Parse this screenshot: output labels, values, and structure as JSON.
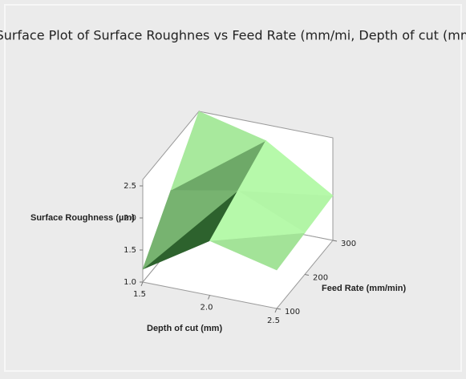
{
  "chart_data": {
    "type": "surface",
    "title": "Surface Plot of Surface Roughnes vs Feed Rate (mm/mi, Depth of cut (mm",
    "xlabel": "Depth of cut (mm)",
    "ylabel": "Feed Rate (mm/min)",
    "zlabel": "Surface Roughness (µm)",
    "x": [
      1.5,
      2.0,
      2.5
    ],
    "y": [
      100,
      200,
      300
    ],
    "z": [
      [
        1.2,
        1.85,
        1.6
      ],
      [
        1.9,
        2.1,
        1.65
      ],
      [
        2.6,
        2.35,
        1.7
      ]
    ],
    "xlim": [
      1.5,
      2.5
    ],
    "ylim": [
      100,
      300
    ],
    "zlim": [
      1.0,
      2.6
    ],
    "xticks": [
      1.5,
      {
        "value": 2.0,
        "label": "2.0"
      },
      2.5
    ],
    "yticks": [
      100,
      200,
      300
    ],
    "zticks": [
      {
        "value": 1.0,
        "label": "1.0"
      },
      1.5,
      {
        "value": 2.0,
        "label": "2.0"
      },
      2.5
    ],
    "colormap": [
      "#0e3f10",
      "#b6f9aa"
    ]
  }
}
